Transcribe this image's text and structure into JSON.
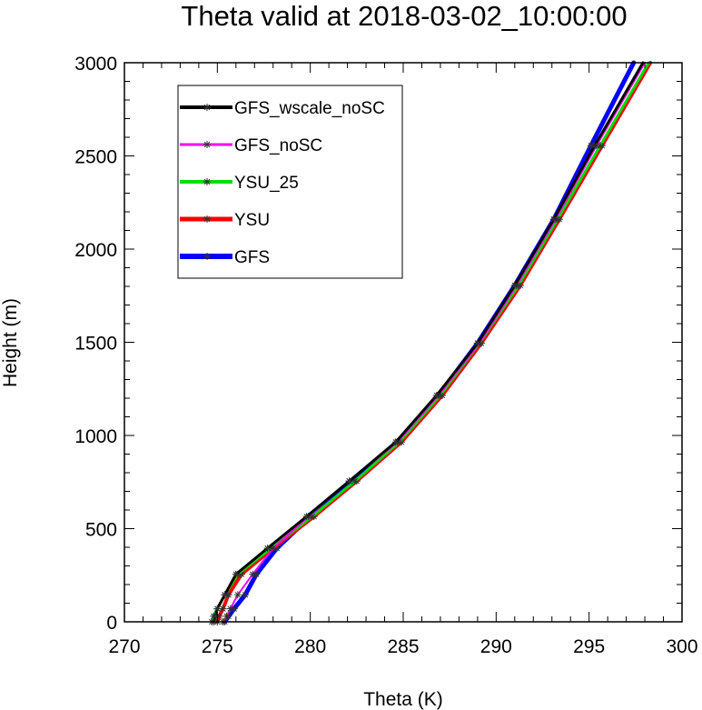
{
  "chart_data": {
    "type": "line",
    "title": "Theta valid at 2018-03-02_10:00:00",
    "xlabel": "Theta (K)",
    "ylabel": "Height (m)",
    "xlim": [
      270,
      300
    ],
    "ylim": [
      0,
      3000
    ],
    "x_ticks": [
      "270",
      "275",
      "280",
      "285",
      "290",
      "295",
      "300"
    ],
    "y_ticks": [
      "0",
      "500",
      "1000",
      "1500",
      "2000",
      "2500",
      "3000"
    ],
    "grid": false,
    "legend_position": "top-left",
    "series": [
      {
        "name": "GFS_wscale_noSC",
        "color": "#000000",
        "points": [
          [
            274.8,
            0
          ],
          [
            274.9,
            30
          ],
          [
            275.0,
            70
          ],
          [
            275.4,
            145
          ],
          [
            276.0,
            255
          ],
          [
            277.7,
            395
          ],
          [
            279.8,
            565
          ],
          [
            282.1,
            755
          ],
          [
            284.6,
            965
          ],
          [
            286.8,
            1215
          ],
          [
            289.0,
            1495
          ],
          [
            291.0,
            1805
          ],
          [
            293.1,
            2160
          ],
          [
            295.3,
            2555
          ],
          [
            297.9,
            3000
          ]
        ],
        "markers": [
          [
            274.8,
            0
          ],
          [
            274.9,
            30
          ],
          [
            275.0,
            70
          ],
          [
            275.4,
            145
          ],
          [
            276.0,
            255
          ],
          [
            277.7,
            395
          ],
          [
            279.8,
            565
          ],
          [
            282.1,
            755
          ],
          [
            284.6,
            965
          ],
          [
            286.8,
            1215
          ],
          [
            289.0,
            1495
          ],
          [
            291.0,
            1805
          ],
          [
            293.1,
            2160
          ],
          [
            295.3,
            2555
          ]
        ]
      },
      {
        "name": "GFS_noSC",
        "color": "#ff00ff",
        "points": [
          [
            275.3,
            0
          ],
          [
            275.5,
            30
          ],
          [
            275.7,
            70
          ],
          [
            276.1,
            145
          ],
          [
            276.9,
            255
          ],
          [
            278.0,
            395
          ],
          [
            279.9,
            565
          ],
          [
            282.1,
            755
          ],
          [
            284.7,
            965
          ],
          [
            286.9,
            1215
          ],
          [
            289.1,
            1495
          ],
          [
            291.1,
            1805
          ],
          [
            293.2,
            2160
          ],
          [
            295.4,
            2555
          ],
          [
            298.0,
            3000
          ]
        ],
        "markers": [
          [
            275.3,
            0
          ],
          [
            275.5,
            30
          ],
          [
            275.7,
            70
          ],
          [
            276.1,
            145
          ],
          [
            276.9,
            255
          ],
          [
            278.0,
            395
          ],
          [
            279.9,
            565
          ],
          [
            282.1,
            755
          ],
          [
            284.7,
            965
          ],
          [
            286.9,
            1215
          ],
          [
            289.1,
            1495
          ],
          [
            291.1,
            1805
          ],
          [
            293.2,
            2160
          ],
          [
            295.4,
            2555
          ]
        ]
      },
      {
        "name": "YSU_25",
        "color": "#00dd00",
        "points": [
          [
            274.7,
            0
          ],
          [
            274.8,
            30
          ],
          [
            275.0,
            70
          ],
          [
            275.4,
            145
          ],
          [
            276.1,
            255
          ],
          [
            277.9,
            395
          ],
          [
            280.1,
            565
          ],
          [
            282.4,
            755
          ],
          [
            284.8,
            965
          ],
          [
            287.0,
            1215
          ],
          [
            289.1,
            1495
          ],
          [
            291.2,
            1805
          ],
          [
            293.3,
            2160
          ],
          [
            295.6,
            2555
          ],
          [
            298.2,
            3000
          ]
        ],
        "markers": [
          [
            274.7,
            0
          ],
          [
            274.8,
            30
          ],
          [
            275.0,
            70
          ],
          [
            275.4,
            145
          ],
          [
            276.1,
            255
          ],
          [
            277.9,
            395
          ],
          [
            280.1,
            565
          ],
          [
            282.4,
            755
          ],
          [
            284.8,
            965
          ],
          [
            287.0,
            1215
          ],
          [
            289.1,
            1495
          ],
          [
            291.2,
            1805
          ],
          [
            293.3,
            2160
          ],
          [
            295.6,
            2555
          ]
        ]
      },
      {
        "name": "YSU",
        "color": "#ff0000",
        "points": [
          [
            275.0,
            0
          ],
          [
            275.1,
            30
          ],
          [
            275.3,
            70
          ],
          [
            275.6,
            145
          ],
          [
            276.3,
            255
          ],
          [
            278.0,
            395
          ],
          [
            280.2,
            565
          ],
          [
            282.5,
            755
          ],
          [
            284.9,
            965
          ],
          [
            287.1,
            1215
          ],
          [
            289.2,
            1495
          ],
          [
            291.3,
            1805
          ],
          [
            293.4,
            2160
          ],
          [
            295.7,
            2555
          ],
          [
            298.3,
            3000
          ]
        ],
        "markers": [
          [
            275.0,
            0
          ],
          [
            275.1,
            30
          ],
          [
            275.3,
            70
          ],
          [
            275.6,
            145
          ],
          [
            276.3,
            255
          ],
          [
            278.0,
            395
          ],
          [
            280.2,
            565
          ],
          [
            282.5,
            755
          ],
          [
            284.9,
            965
          ],
          [
            287.1,
            1215
          ],
          [
            289.2,
            1495
          ],
          [
            291.3,
            1805
          ],
          [
            293.4,
            2160
          ],
          [
            295.7,
            2555
          ]
        ]
      },
      {
        "name": "GFS",
        "color": "#0000ff",
        "points": [
          [
            275.4,
            0
          ],
          [
            275.6,
            30
          ],
          [
            275.9,
            70
          ],
          [
            276.5,
            145
          ],
          [
            277.1,
            255
          ],
          [
            278.2,
            395
          ],
          [
            280.0,
            565
          ],
          [
            282.3,
            755
          ],
          [
            284.7,
            965
          ],
          [
            286.9,
            1215
          ],
          [
            289.0,
            1495
          ],
          [
            291.0,
            1805
          ],
          [
            293.1,
            2160
          ],
          [
            295.1,
            2555
          ],
          [
            297.4,
            3000
          ]
        ],
        "markers": [
          [
            275.4,
            0
          ],
          [
            275.6,
            30
          ],
          [
            275.9,
            70
          ],
          [
            276.5,
            145
          ],
          [
            277.1,
            255
          ],
          [
            278.2,
            395
          ],
          [
            280.0,
            565
          ],
          [
            282.3,
            755
          ],
          [
            284.7,
            965
          ],
          [
            286.9,
            1215
          ],
          [
            289.0,
            1495
          ],
          [
            291.0,
            1805
          ],
          [
            293.1,
            2160
          ],
          [
            295.1,
            2555
          ]
        ]
      }
    ]
  }
}
